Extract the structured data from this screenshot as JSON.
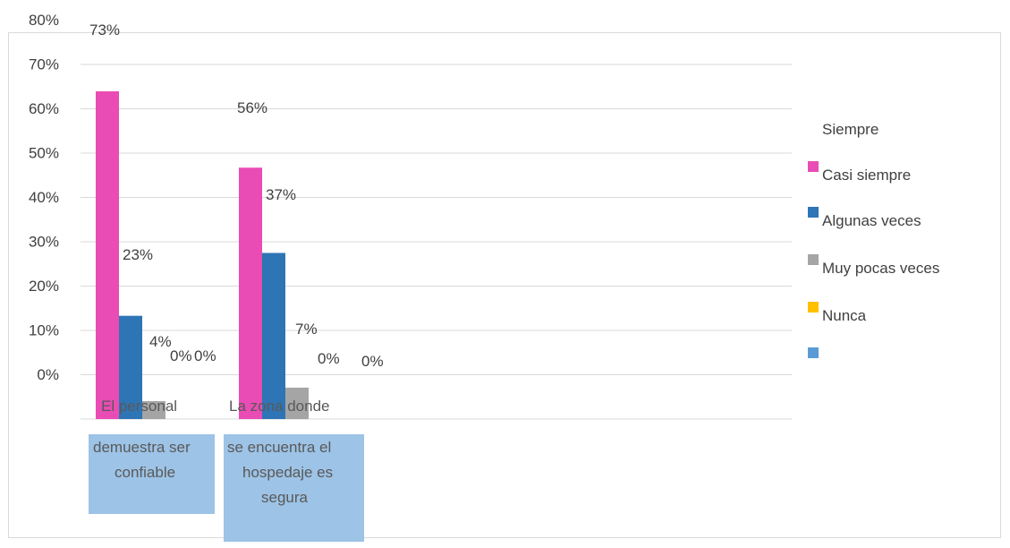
{
  "chart_data": {
    "type": "bar",
    "title": "",
    "xlabel": "",
    "ylabel": "",
    "ylim": [
      0,
      80
    ],
    "y_ticks": [
      "0%",
      "10%",
      "20%",
      "30%",
      "40%",
      "50%",
      "60%",
      "70%",
      "80%"
    ],
    "grid": true,
    "legend_position": "right",
    "categories": [
      [
        "El personal",
        "demuestra ser",
        "confiable"
      ],
      [
        "La zona donde",
        "se encuentra el",
        "hospedaje es",
        "segura"
      ]
    ],
    "series": [
      {
        "name": "Siempre",
        "color": "#e94cb4",
        "values": [
          73,
          56
        ]
      },
      {
        "name": "Casi siempre",
        "color": "#2e75b6",
        "values": [
          23,
          37
        ]
      },
      {
        "name": "Algunas veces",
        "color": "#a5a5a5",
        "values": [
          4,
          7
        ]
      },
      {
        "name": "Muy pocas veces",
        "color": "#ffc000",
        "values": [
          0,
          0
        ]
      },
      {
        "name": "Nunca",
        "color": "#5b9bd5",
        "values": [
          0,
          0
        ]
      }
    ],
    "data_labels": [
      [
        "73%",
        "23%",
        "4%",
        "0%",
        "0%"
      ],
      [
        "56%",
        "37%",
        "7%",
        "0%",
        "0%"
      ]
    ]
  }
}
